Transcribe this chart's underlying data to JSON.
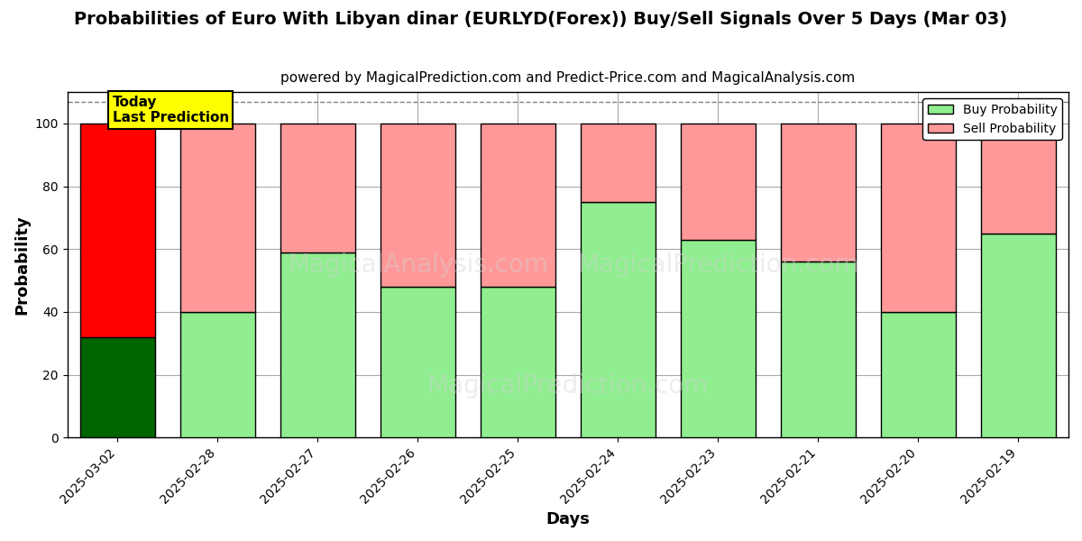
{
  "title": "Probabilities of Euro With Libyan dinar (EURLYD(Forex)) Buy/Sell Signals Over 5 Days (Mar 03)",
  "subtitle": "powered by MagicalPrediction.com and Predict-Price.com and MagicalAnalysis.com",
  "xlabel": "Days",
  "ylabel": "Probability",
  "categories": [
    "2025-03-02",
    "2025-02-28",
    "2025-02-27",
    "2025-02-26",
    "2025-02-25",
    "2025-02-24",
    "2025-02-23",
    "2025-02-21",
    "2025-02-20",
    "2025-02-19"
  ],
  "buy_values": [
    32,
    40,
    59,
    48,
    48,
    75,
    63,
    56,
    40,
    65
  ],
  "sell_values": [
    68,
    60,
    41,
    52,
    52,
    25,
    37,
    44,
    60,
    35
  ],
  "today_index": 0,
  "today_buy_color": "#006400",
  "today_sell_color": "#ff0000",
  "normal_buy_color": "#90EE90",
  "normal_sell_color": "#FF9999",
  "today_label_bg": "#ffff00",
  "today_label_text": "Today\nLast Prediction",
  "legend_buy_label": "Buy Probability",
  "legend_sell_label": "Sell Probability",
  "ylim": [
    0,
    110
  ],
  "yticks": [
    0,
    20,
    40,
    60,
    80,
    100
  ],
  "watermark_texts": [
    "MagicalAnalysis.com",
    "MagicalPrediction.com"
  ],
  "dashed_line_y": 107,
  "background_color": "#ffffff",
  "grid_color": "#aaaaaa",
  "bar_edge_color": "#000000",
  "bar_linewidth": 1.0,
  "title_fontsize": 14,
  "subtitle_fontsize": 11,
  "axis_label_fontsize": 13,
  "tick_fontsize": 10
}
